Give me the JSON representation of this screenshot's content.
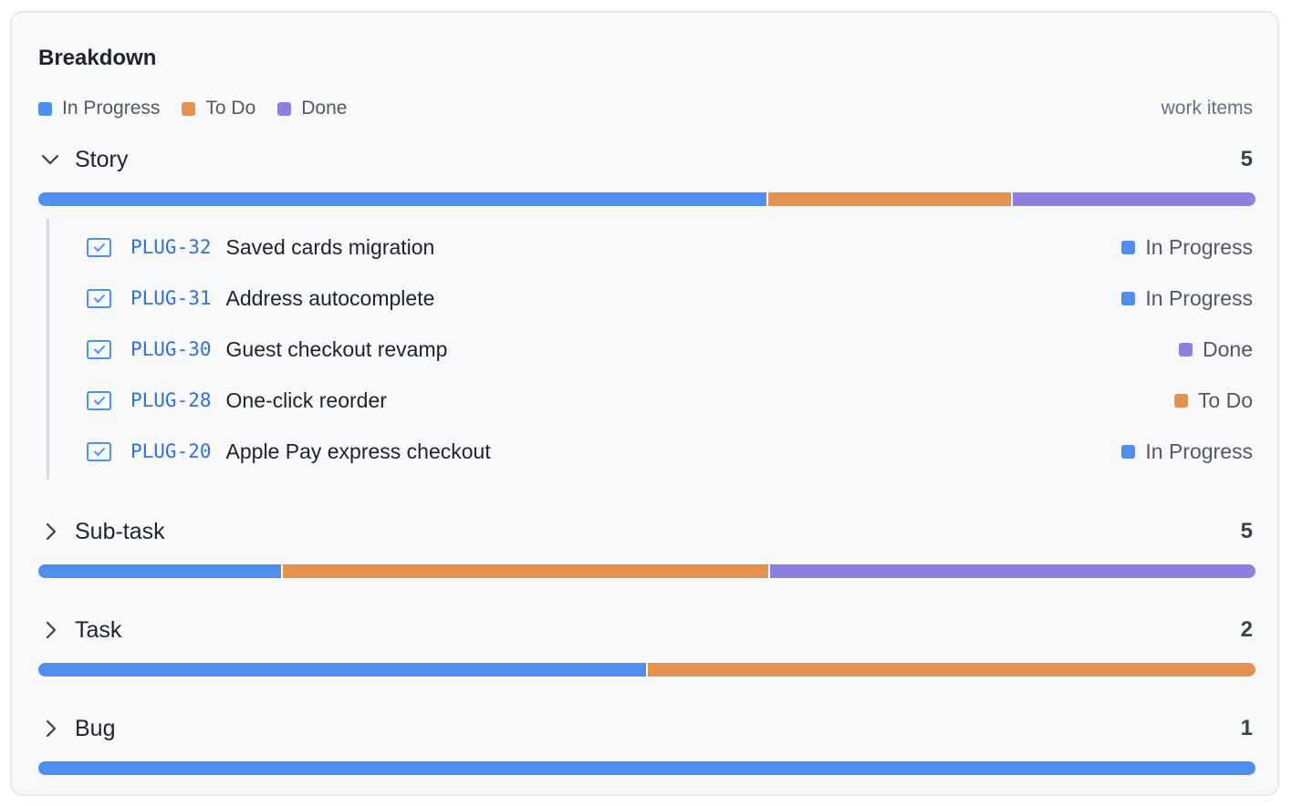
{
  "panel": {
    "title": "Breakdown",
    "unit_label": "work items"
  },
  "legend": [
    {
      "label": "In Progress",
      "color": "#4e8ef0"
    },
    {
      "label": "To Do",
      "color": "#e6924f"
    },
    {
      "label": "Done",
      "color": "#8e7fe0"
    }
  ],
  "groups": [
    {
      "name": "Story",
      "count": "5",
      "expanded": true,
      "chevron": "chevron-down-icon",
      "bar": {
        "in_progress": 0.6,
        "to_do": 0.2,
        "done": 0.2
      },
      "items": [
        {
          "key": "PLUG-32",
          "summary": "Saved cards migration",
          "status": "In Progress",
          "status_color": "#4e8ef0",
          "icon": "story-checkbox-icon"
        },
        {
          "key": "PLUG-31",
          "summary": "Address autocomplete",
          "status": "In Progress",
          "status_color": "#4e8ef0",
          "icon": "story-checkbox-icon"
        },
        {
          "key": "PLUG-30",
          "summary": "Guest checkout revamp",
          "status": "Done",
          "status_color": "#8e7fe0",
          "icon": "story-checkbox-icon"
        },
        {
          "key": "PLUG-28",
          "summary": "One-click reorder",
          "status": "To Do",
          "status_color": "#e6924f",
          "icon": "story-checkbox-icon"
        },
        {
          "key": "PLUG-20",
          "summary": "Apple Pay express checkout",
          "status": "In Progress",
          "status_color": "#4e8ef0",
          "icon": "story-checkbox-icon"
        }
      ]
    },
    {
      "name": "Sub-task",
      "count": "5",
      "expanded": false,
      "chevron": "chevron-right-icon",
      "bar": {
        "in_progress": 0.2,
        "to_do": 0.4,
        "done": 0.4
      }
    },
    {
      "name": "Task",
      "count": "2",
      "expanded": false,
      "chevron": "chevron-right-icon",
      "bar": {
        "in_progress": 0.5,
        "to_do": 0.5,
        "done": 0
      }
    },
    {
      "name": "Bug",
      "count": "1",
      "expanded": false,
      "chevron": "chevron-right-icon",
      "bar": {
        "in_progress": 1,
        "to_do": 0,
        "done": 0
      }
    }
  ]
}
